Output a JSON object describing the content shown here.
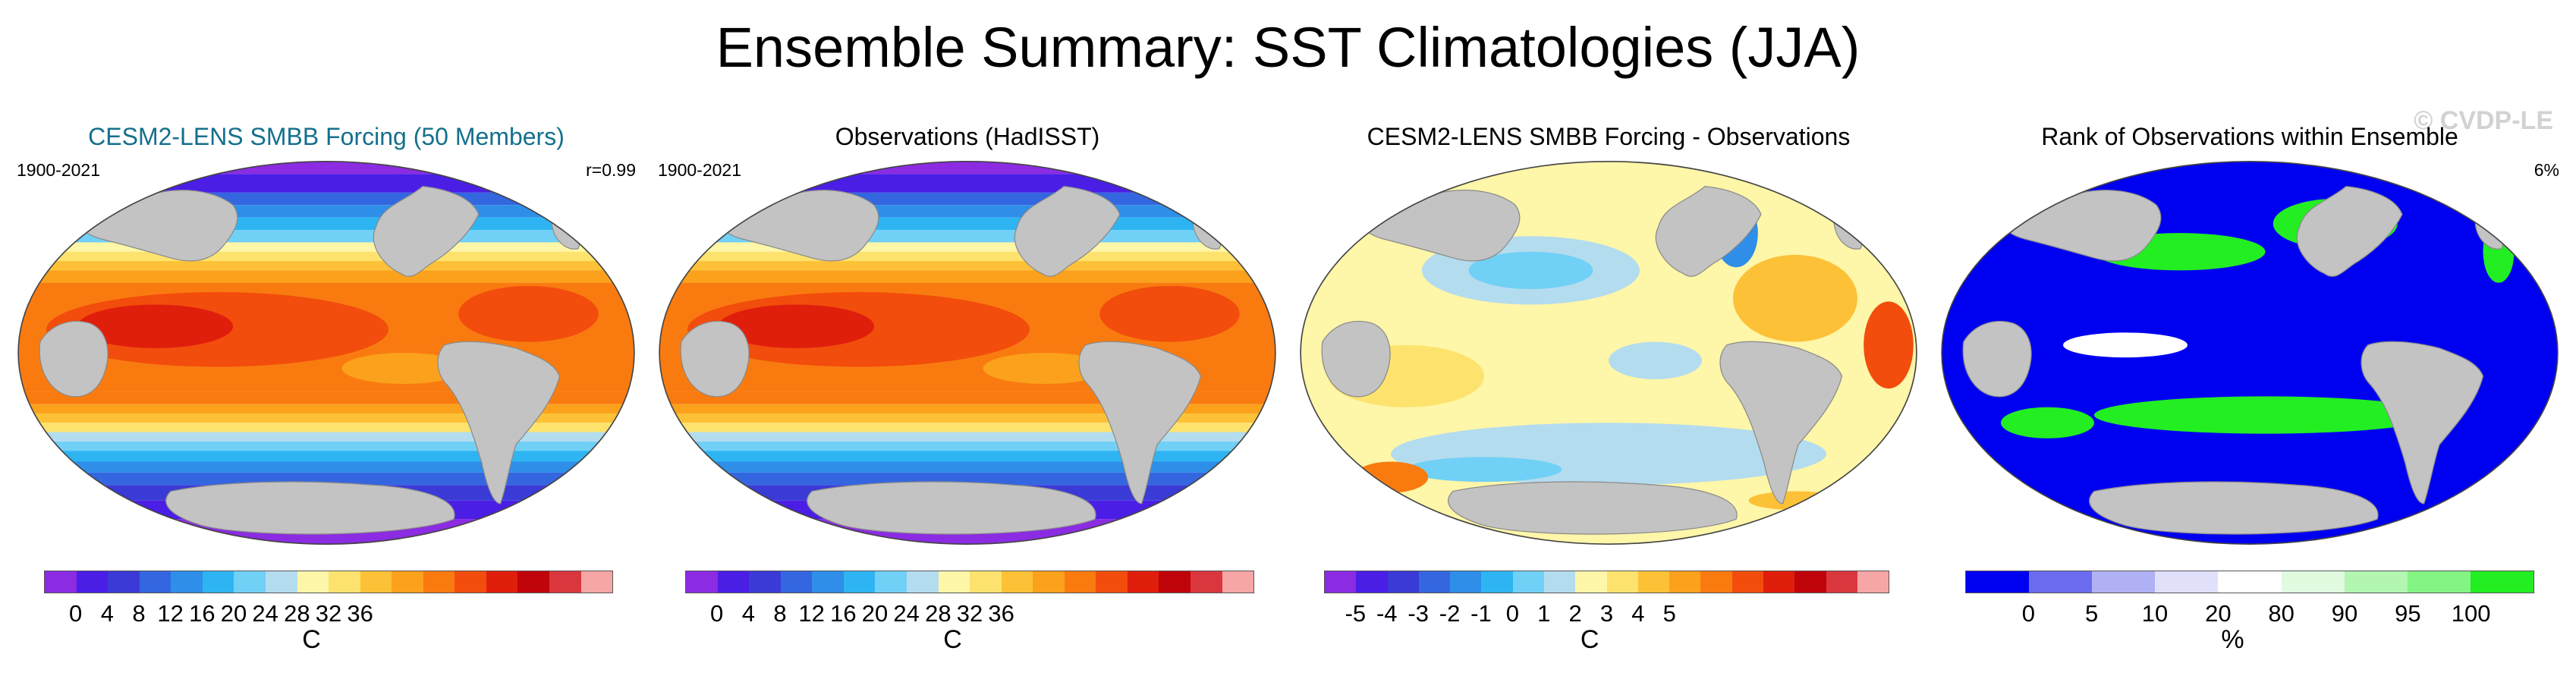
{
  "title": "Ensemble Summary: SST Climatologies (JJA)",
  "watermark": "© CVDP-LE",
  "panels": [
    {
      "title": "CESM2-LENS SMBB Forcing (50 Members)",
      "title_color": "#14708c",
      "left_label": "1900-2021",
      "right_label": "r=0.99",
      "pattern": "sst",
      "colorbar": {
        "colors": [
          "#8b2be2",
          "#4b1ee6",
          "#3a3ad6",
          "#3466e0",
          "#2e8ee8",
          "#2eb4f2",
          "#71d0f5",
          "#b4dcef",
          "#fef6a8",
          "#fde36e",
          "#fdc137",
          "#fba11c",
          "#f97b10",
          "#f24d0c",
          "#e01e0c",
          "#c0050a",
          "#d9373d",
          "#f7a6a6"
        ],
        "ticks": [
          "0",
          "4",
          "8",
          "12",
          "16",
          "20",
          "24",
          "28",
          "32",
          "36"
        ],
        "unit": "C"
      }
    },
    {
      "title": "Observations (HadISST)",
      "title_color": "#000000",
      "left_label": "1900-2021",
      "right_label": "",
      "pattern": "sst",
      "colorbar": {
        "colors": [
          "#8b2be2",
          "#4b1ee6",
          "#3a3ad6",
          "#3466e0",
          "#2e8ee8",
          "#2eb4f2",
          "#71d0f5",
          "#b4dcef",
          "#fef6a8",
          "#fde36e",
          "#fdc137",
          "#fba11c",
          "#f97b10",
          "#f24d0c",
          "#e01e0c",
          "#c0050a",
          "#d9373d",
          "#f7a6a6"
        ],
        "ticks": [
          "0",
          "4",
          "8",
          "12",
          "16",
          "20",
          "24",
          "28",
          "32",
          "36"
        ],
        "unit": "C"
      }
    },
    {
      "title": "CESM2-LENS SMBB Forcing - Observations",
      "title_color": "#000000",
      "left_label": "",
      "right_label": "",
      "pattern": "diff",
      "colorbar": {
        "colors": [
          "#8b2be2",
          "#4b1ee6",
          "#3a3ad6",
          "#3466e0",
          "#2e8ee8",
          "#2eb4f2",
          "#71d0f5",
          "#b4dcef",
          "#fef6a8",
          "#fde36e",
          "#fdc137",
          "#fba11c",
          "#f97b10",
          "#f24d0c",
          "#e01e0c",
          "#c0050a",
          "#d9373d",
          "#f7a6a6"
        ],
        "ticks": [
          "-5",
          "-4",
          "-3",
          "-2",
          "-1",
          "0",
          "1",
          "2",
          "3",
          "4",
          "5"
        ],
        "unit": "C"
      }
    },
    {
      "title": "Rank of Observations within Ensemble",
      "title_color": "#000000",
      "left_label": "",
      "right_label": "6%",
      "pattern": "rank",
      "colorbar": {
        "colors": [
          "#0000f0",
          "#6b6bf0",
          "#b0b0f4",
          "#e0e0fb",
          "#ffffff",
          "#e1fbe1",
          "#b2f6b2",
          "#84f484",
          "#22ee22"
        ],
        "ticks": [
          "0",
          "5",
          "10",
          "20",
          "80",
          "90",
          "95",
          "100"
        ],
        "unit": "%"
      }
    }
  ]
}
